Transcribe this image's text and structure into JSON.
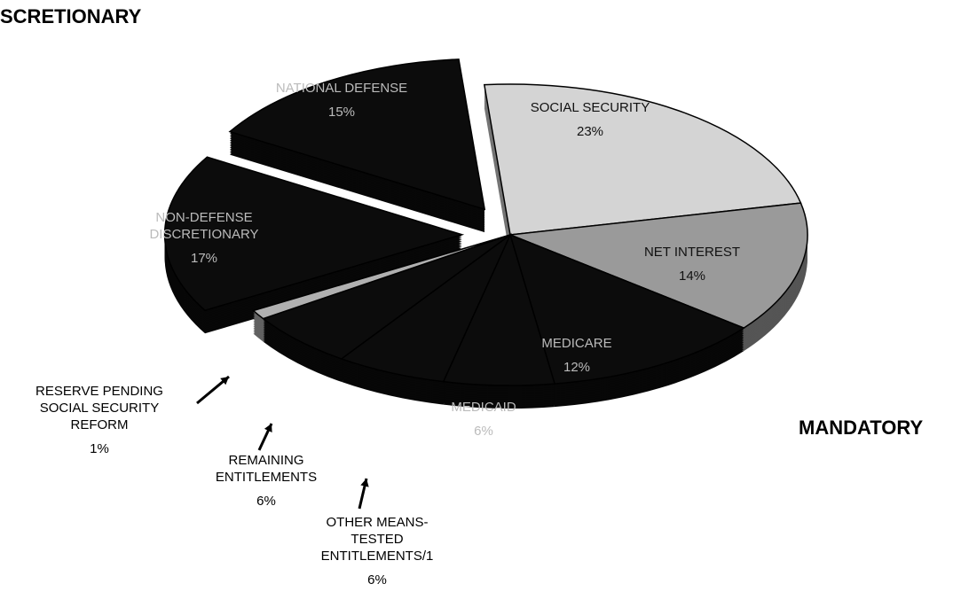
{
  "chart_data": {
    "type": "pie",
    "categories": [
      "SOCIAL SECURITY",
      "NET INTEREST",
      "MEDICARE",
      "MEDICAID",
      "OTHER MEANS-TESTED ENTITLEMENTS/1",
      "REMAINING ENTITLEMENTS",
      "RESERVE PENDING SOCIAL SECURITY REFORM",
      "NON-DEFENSE DISCRETIONARY",
      "NATIONAL DEFENSE"
    ],
    "values": [
      23,
      14,
      12,
      6,
      6,
      6,
      1,
      17,
      15
    ],
    "value_labels": [
      "23%",
      "14%",
      "12%",
      "6%",
      "6%",
      "6%",
      "1%",
      "17%",
      "15%"
    ],
    "colors": [
      "#d4d4d4",
      "#9a9a9a",
      "#0c0c0c",
      "#0c0c0c",
      "#0c0c0c",
      "#0c0c0c",
      "#b0b0b0",
      "#0c0c0c",
      "#0c0c0c"
    ],
    "annotations": [
      "DISCRETIONARY",
      "MANDATORY"
    ]
  }
}
